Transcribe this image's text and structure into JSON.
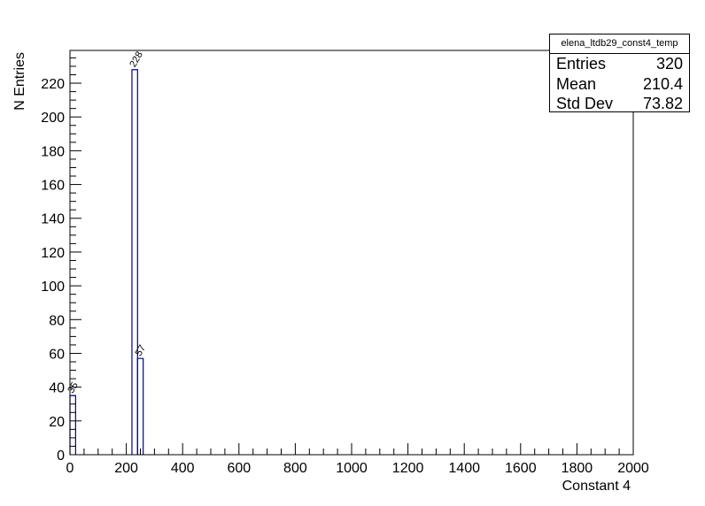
{
  "chart_data": {
    "type": "bar",
    "title": "elena_ltdb29_const4_temp",
    "xlabel": "Constant 4",
    "ylabel": "N Entries",
    "xlim": [
      0,
      2000
    ],
    "ylim": [
      0,
      239.4
    ],
    "x_ticks": [
      0,
      200,
      400,
      600,
      800,
      1000,
      1200,
      1400,
      1600,
      1800,
      2000
    ],
    "y_ticks": [
      0,
      20,
      40,
      60,
      80,
      100,
      120,
      140,
      160,
      180,
      200,
      220
    ],
    "bin_width": 20,
    "bins": [
      {
        "x0": 0,
        "x1": 20,
        "value": 35,
        "label": "35"
      },
      {
        "x0": 220,
        "x1": 240,
        "value": 228,
        "label": "228"
      },
      {
        "x0": 240,
        "x1": 260,
        "value": 57,
        "label": "57"
      }
    ],
    "line_color": "#000099",
    "grid": false
  },
  "stats": {
    "title": "elena_ltdb29_const4_temp",
    "rows": [
      {
        "label": "Entries",
        "value": "320"
      },
      {
        "label": "Mean",
        "value": "210.4"
      },
      {
        "label": "Std Dev",
        "value": "73.82"
      }
    ]
  }
}
